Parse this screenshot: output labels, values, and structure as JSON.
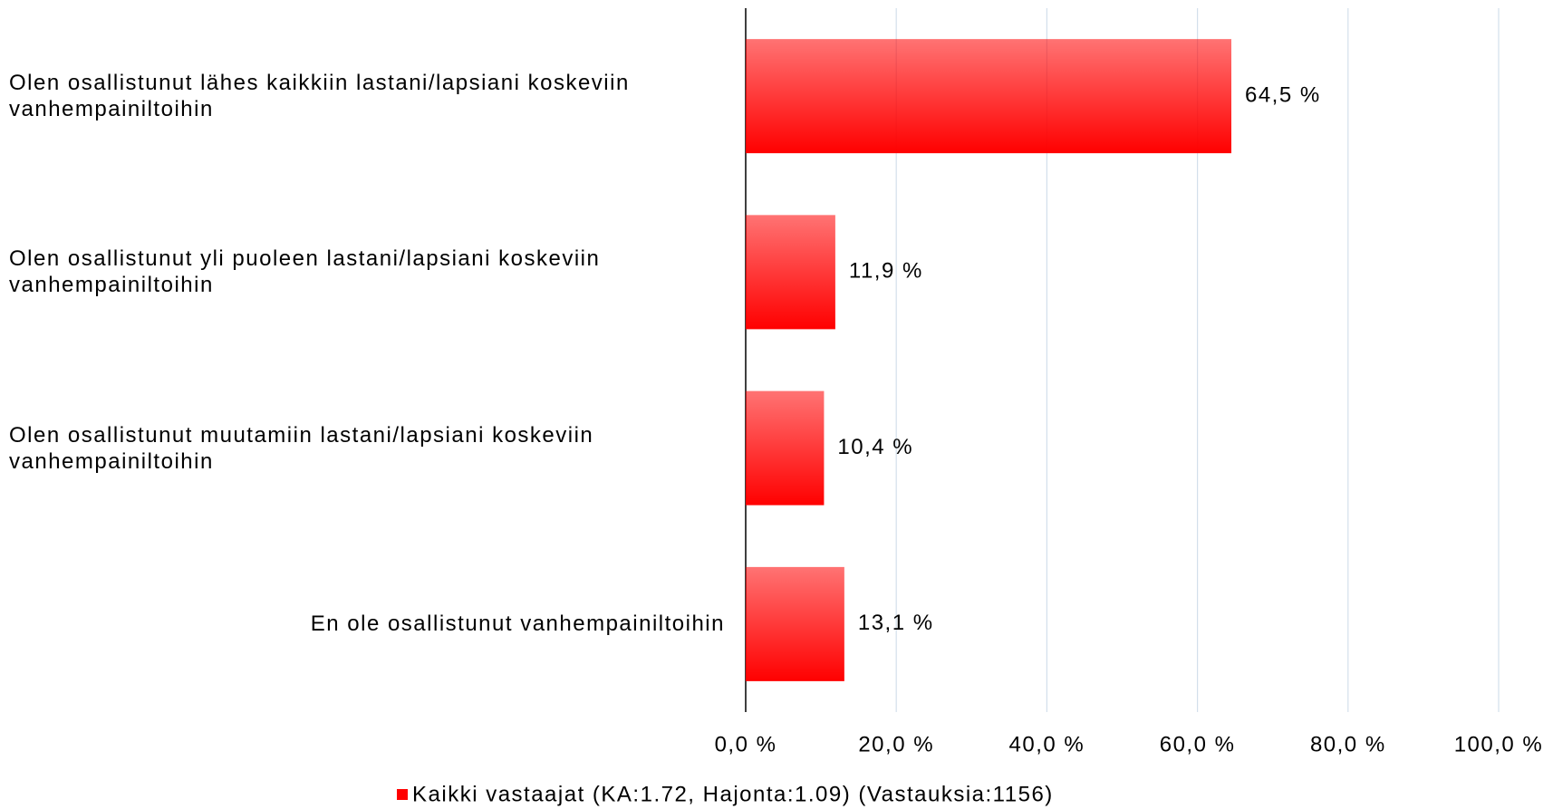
{
  "chart_data": {
    "type": "hbar",
    "categories": [
      "Olen osallistunut lähes kaikkiin lastani/lapsiani koskeviin vanhempainiltoihin",
      "Olen osallistunut yli puoleen lastani/lapsiani koskeviin vanhempainiltoihin",
      "Olen osallistunut muutamiin lastani/lapsiani koskeviin vanhempainiltoihin",
      "En ole osallistunut vanhempainiltoihin"
    ],
    "series": [
      {
        "name": "Kaikki vastaajat (KA:1.72, Hajonta:1.09) (Vastauksia:1156)",
        "color": "#ff0000",
        "values": [
          64.5,
          11.9,
          10.4,
          13.1
        ],
        "value_labels": [
          "64,5 %",
          "11,9 %",
          "10,4 %",
          "13,1 %"
        ]
      }
    ],
    "xlim": [
      0,
      100
    ],
    "xticks": [
      {
        "value": 0,
        "label": "0,0 %"
      },
      {
        "value": 20,
        "label": "20,0 %"
      },
      {
        "value": 40,
        "label": "40,0 %"
      },
      {
        "value": 60,
        "label": "60,0 %"
      },
      {
        "value": 80,
        "label": "80,0 %"
      },
      {
        "value": 100,
        "label": "100,0 %"
      }
    ],
    "grid": true,
    "legend": "bottom"
  }
}
